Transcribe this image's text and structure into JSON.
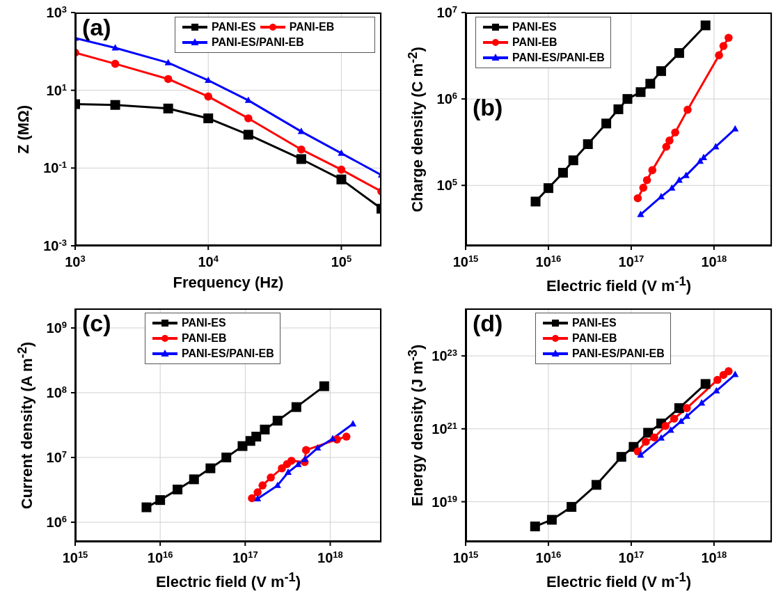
{
  "chart_data": [
    {
      "type": "line",
      "xlabel": "Frequency (Hz)",
      "ylabel": "Z (MΩ)",
      "annotations": [
        "(a)"
      ],
      "log": "xy",
      "grid": true,
      "legend": "top right",
      "xlim": [
        1000,
        200000
      ],
      "xticks": [
        {
          "value": 1000,
          "label": "10$^{3}$"
        },
        {
          "value": 10000,
          "label": "10$^{4}$"
        },
        {
          "value": 100000,
          "label": "10$^{5}$"
        }
      ],
      "ylim": [
        0.001,
        1000
      ],
      "yticks": [
        {
          "value": 0.001,
          "label": "10$^{-3}$"
        },
        {
          "value": 0.1,
          "label": "10$^{-1}$"
        },
        {
          "value": 10,
          "label": "10$^{1}$"
        },
        {
          "value": 1000,
          "label": "10$^{3}$"
        }
      ],
      "series": [
        {
          "name": "PANI-ES",
          "color": "#000000",
          "marker": "square",
          "x": [
            1000,
            2000,
            5000,
            10000,
            20000,
            50000,
            100000,
            200000
          ],
          "values": [
            4.4,
            4.2,
            3.4,
            1.9,
            0.72,
            0.17,
            0.051,
            0.009
          ]
        },
        {
          "name": "PANI-EB",
          "color": "#ff0000",
          "marker": "circle",
          "x": [
            1000,
            2000,
            5000,
            10000,
            20000,
            50000,
            100000,
            200000
          ],
          "values": [
            93,
            48,
            19.5,
            6.9,
            1.9,
            0.3,
            0.091,
            0.025
          ]
        },
        {
          "name": "PANI-ES/PANI-EB",
          "color": "#0000ff",
          "marker": "triangle",
          "x": [
            1000,
            2000,
            5000,
            10000,
            20000,
            50000,
            100000,
            200000
          ],
          "values": [
            220,
            123,
            51,
            18,
            5.5,
            0.87,
            0.24,
            0.066
          ]
        }
      ]
    },
    {
      "type": "line",
      "xlabel": "Electric field (V m$^{-1}$)",
      "ylabel": "Charge density (C m$^{-2}$)",
      "annotations": [
        "(b)"
      ],
      "log": "xy",
      "grid": true,
      "legend": "top left",
      "xlim": [
        1000000000000000.0,
        5e+18
      ],
      "xticks": [
        {
          "value": 1000000000000000.0,
          "label": "10$^{15}$"
        },
        {
          "value": 1e+16,
          "label": "10$^{16}$"
        },
        {
          "value": 1e+17,
          "label": "10$^{17}$"
        },
        {
          "value": 1e+18,
          "label": "10$^{18}$"
        }
      ],
      "ylim": [
        20000,
        10000000
      ],
      "yticks": [
        {
          "value": 100000,
          "label": "10$^{5}$"
        },
        {
          "value": 1000000,
          "label": "10$^{6}$"
        },
        {
          "value": 10000000,
          "label": "10$^{7}$"
        }
      ],
      "series": [
        {
          "name": "PANI-ES",
          "color": "#000000",
          "marker": "square",
          "x": [
            7000000000000000.0,
            1e+16,
            1.5e+16,
            2e+16,
            3e+16,
            5e+16,
            7e+16,
            9e+16,
            1.3e+17,
            1.7e+17,
            2.3e+17,
            3.8e+17,
            7.9e+17
          ],
          "values": [
            65000,
            93000,
            140000,
            195000,
            300000,
            520000,
            760000,
            1000000,
            1200000,
            1500000,
            2100000,
            3400000,
            7100000
          ]
        },
        {
          "name": "PANI-EB",
          "color": "#ff0000",
          "marker": "circle",
          "x": [
            1.2e+17,
            1.4e+17,
            1.55e+17,
            1.8e+17,
            2.65e+17,
            2.9e+17,
            3.4e+17,
            4.8e+17,
            1.15e+18,
            1.3e+18,
            1.5e+18
          ],
          "values": [
            71000,
            94000,
            115000,
            150000,
            280000,
            330000,
            410000,
            750000,
            3200000,
            4100000,
            5100000
          ]
        },
        {
          "name": "PANI-ES/PANI-EB",
          "color": "#0000ff",
          "marker": "triangle",
          "x": [
            1.3e+17,
            2.3e+17,
            3.1e+17,
            3.8e+17,
            4.6e+17,
            6.8e+17,
            7.5e+17,
            1.05e+18,
            1.8e+18
          ],
          "values": [
            46000,
            74000,
            93000,
            115000,
            130000,
            190000,
            210000,
            280000,
            450000
          ]
        }
      ]
    },
    {
      "type": "line",
      "xlabel": "Electric field (V m$^{-1}$)",
      "ylabel": "Current density (A m$^{-2}$)",
      "annotations": [
        "(c)"
      ],
      "log": "xy",
      "grid": true,
      "legend": "top",
      "xlim": [
        1000000000000000.0,
        4e+18
      ],
      "xticks": [
        {
          "value": 1000000000000000.0,
          "label": "10$^{15}$"
        },
        {
          "value": 1e+16,
          "label": "10$^{16}$"
        },
        {
          "value": 1e+17,
          "label": "10$^{17}$"
        },
        {
          "value": 1e+18,
          "label": "10$^{18}$"
        }
      ],
      "ylim": [
        500000,
        2000000000
      ],
      "yticks": [
        {
          "value": 1000000,
          "label": "10$^{6}$"
        },
        {
          "value": 10000000,
          "label": "10$^{7}$"
        },
        {
          "value": 100000000,
          "label": "10$^{8}$"
        },
        {
          "value": 1000000000,
          "label": "10$^{9}$"
        }
      ],
      "series": [
        {
          "name": "PANI-ES",
          "color": "#000000",
          "marker": "square",
          "x": [
            6900000000000000.0,
            1e+16,
            1.6e+16,
            2.5e+16,
            3.9e+16,
            6e+16,
            9.3e+16,
            1.15e+17,
            1.35e+17,
            1.7e+17,
            2.4e+17,
            4e+17,
            8.5e+17
          ],
          "values": [
            1700000,
            2200000,
            3200000,
            4600000,
            6800000,
            10000000,
            15000000,
            18000000,
            21000000,
            27000000,
            37000000,
            60000000,
            126000000
          ]
        },
        {
          "name": "PANI-EB",
          "color": "#ff0000",
          "marker": "circle",
          "x": [
            1.2e+17,
            1.4e+17,
            1.6e+17,
            2e+17,
            2.7e+17,
            3.1e+17,
            3.5e+17,
            5e+17,
            5.2e+17,
            1.2e+18,
            1.55e+18
          ],
          "values": [
            2350000,
            2900000,
            3700000,
            4900000,
            6800000,
            7900000,
            8900000,
            8500000,
            13000000,
            19000000,
            21000000
          ]
        },
        {
          "name": "PANI-ES/PANI-EB",
          "color": "#0000ff",
          "marker": "triangle",
          "x": [
            1.4e+17,
            2.4e+17,
            3.2e+17,
            4.2e+17,
            5e+17,
            7.1e+17,
            1.07e+18,
            1.85e+18
          ],
          "values": [
            2300000,
            3700000,
            5900000,
            7800000,
            9300000,
            14000000,
            19500000,
            33000000
          ]
        }
      ]
    },
    {
      "type": "line",
      "xlabel": "Electric field (V m$^{-1}$)",
      "ylabel": "Energy density (J m$^{-3}$)",
      "annotations": [
        "(d)"
      ],
      "log": "xy",
      "grid": true,
      "legend": "top",
      "xlim": [
        1000000000000000.0,
        5e+18
      ],
      "xticks": [
        {
          "value": 1000000000000000.0,
          "label": "10$^{15}$"
        },
        {
          "value": 1e+16,
          "label": "10$^{16}$"
        },
        {
          "value": 1e+17,
          "label": "10$^{17}$"
        },
        {
          "value": 1e+18,
          "label": "10$^{18}$"
        }
      ],
      "ylim": [
        8e+17,
        2e+24
      ],
      "yticks": [
        {
          "value": 1e+19,
          "label": "10$^{19}$"
        },
        {
          "value": 1e+21,
          "label": "10$^{21}$"
        },
        {
          "value": 1e+23,
          "label": "10$^{23}$"
        }
      ],
      "series": [
        {
          "name": "PANI-ES",
          "color": "#000000",
          "marker": "square",
          "x": [
            6900000000000000.0,
            1.1e+16,
            1.9e+16,
            3.8e+16,
            7.6e+16,
            1.07e+17,
            1.6e+17,
            2.3e+17,
            3.8e+17,
            7.9e+17
          ],
          "values": [
            2.1e+18,
            3.2e+18,
            7.2e+18,
            2.9e+19,
            1.7e+20,
            3.2e+20,
            7.8e+20,
            1.4e+21,
            3.7e+21,
            1.7e+22
          ]
        },
        {
          "name": "PANI-EB",
          "color": "#ff0000",
          "marker": "circle",
          "x": [
            1.2e+17,
            1.5e+17,
            1.9e+17,
            2.6e+17,
            3.3e+17,
            4.7e+17,
            1.1e+18,
            1.3e+18,
            1.5e+18
          ],
          "values": [
            2.4e+20,
            4.4e+20,
            5.8e+20,
            1.2e+21,
            1.9e+21,
            3.7e+21,
            2.2e+22,
            3e+22,
            3.8e+22
          ]
        },
        {
          "name": "PANI-ES/PANI-EB",
          "color": "#0000ff",
          "marker": "triangle",
          "x": [
            1.3e+17,
            2.3e+17,
            3e+17,
            4e+17,
            4.7e+17,
            7.1e+17,
            1.07e+18,
            1.8e+18
          ],
          "values": [
            1.9e+20,
            5.6e+20,
            9.2e+20,
            1.6e+21,
            2.2e+21,
            5.1e+21,
            1.1e+22,
            3.1e+22
          ]
        }
      ]
    }
  ]
}
